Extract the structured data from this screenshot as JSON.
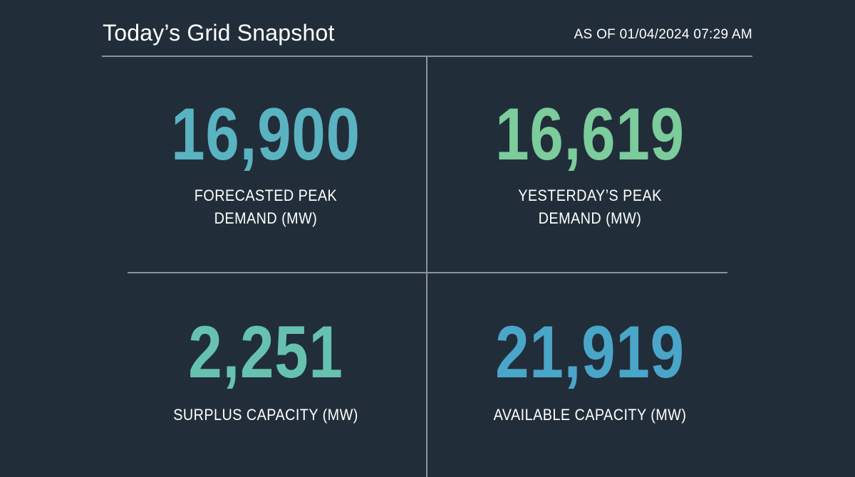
{
  "header": {
    "title": "Today’s Grid Snapshot",
    "timestamp": "AS OF 01/04/2024 07:29 AM"
  },
  "metrics": [
    {
      "value": "16,900",
      "label_line1": "FORECASTED PEAK",
      "label_line2": "DEMAND (MW)",
      "color": "#5ab3c0"
    },
    {
      "value": "16,619",
      "label_line1": "YESTERDAY’S PEAK",
      "label_line2": "DEMAND (MW)",
      "color": "#7ccc9c"
    },
    {
      "value": "2,251",
      "label_line1": "SURPLUS CAPACITY (MW)",
      "color": "#66c2ae"
    },
    {
      "value": "21,919",
      "label_line1": "AVAILABLE CAPACITY (MW)",
      "color": "#4aa6c9"
    }
  ],
  "colors": {
    "background": "#212e3a",
    "rule": "#8b939b",
    "text": "#ffffff"
  }
}
